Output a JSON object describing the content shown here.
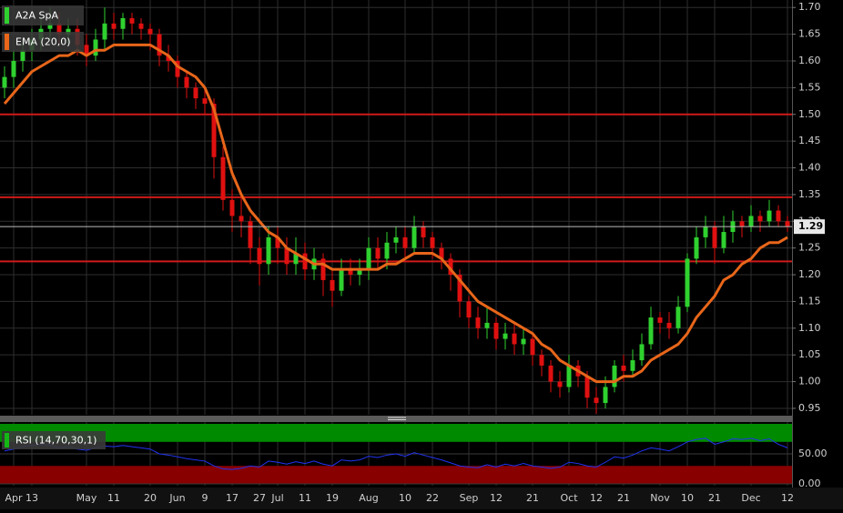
{
  "chart_data": [
    {
      "type": "candlestick",
      "categories": [
        null,
        "Apr",
        null,
        "13",
        null,
        null,
        null,
        null,
        null,
        "May",
        null,
        null,
        "11",
        null,
        null,
        null,
        "20",
        null,
        null,
        "Jun",
        null,
        null,
        "9",
        null,
        null,
        "17",
        null,
        null,
        "27",
        null,
        "Jul",
        null,
        null,
        "11",
        null,
        null,
        "19",
        null,
        null,
        null,
        "Aug",
        null,
        null,
        null,
        "10",
        null,
        null,
        "22",
        null,
        null,
        null,
        "Sep",
        null,
        null,
        "12",
        null,
        null,
        null,
        "21",
        null,
        null,
        null,
        "Oct",
        null,
        null,
        "12",
        null,
        null,
        "21",
        null,
        null,
        null,
        "Nov",
        null,
        null,
        "10",
        null,
        null,
        "21",
        null,
        null,
        null,
        "Dec",
        null,
        null,
        null,
        "12"
      ],
      "series": [
        {
          "name": "A2A SpA",
          "color": "#2fd12f",
          "down_color": "#e01010",
          "open": [
            1.55,
            1.57,
            1.6,
            1.62,
            1.64,
            1.66,
            1.67,
            1.65,
            1.66,
            1.63,
            1.61,
            1.64,
            1.67,
            1.66,
            1.68,
            1.67,
            1.66,
            1.65,
            1.61,
            1.6,
            1.57,
            1.55,
            1.53,
            1.52,
            1.42,
            1.34,
            1.31,
            1.3,
            1.25,
            1.22,
            1.27,
            1.25,
            1.22,
            1.24,
            1.21,
            1.23,
            1.19,
            1.17,
            1.21,
            1.2,
            1.21,
            1.25,
            1.23,
            1.26,
            1.27,
            1.25,
            1.29,
            1.27,
            1.25,
            1.23,
            1.2,
            1.15,
            1.12,
            1.1,
            1.11,
            1.08,
            1.09,
            1.07,
            1.08,
            1.05,
            1.03,
            1.0,
            0.99,
            1.03,
            1.01,
            0.97,
            0.96,
            0.99,
            1.03,
            1.02,
            1.04,
            1.07,
            1.12,
            1.11,
            1.1,
            1.14,
            1.23,
            1.27,
            1.29,
            1.25,
            1.28,
            1.3,
            1.29,
            1.31,
            1.3,
            1.32,
            1.3
          ],
          "high": [
            1.59,
            1.62,
            1.64,
            1.66,
            1.68,
            1.7,
            1.69,
            1.68,
            1.68,
            1.65,
            1.66,
            1.7,
            1.69,
            1.69,
            1.69,
            1.68,
            1.67,
            1.66,
            1.63,
            1.61,
            1.58,
            1.56,
            1.55,
            1.53,
            1.44,
            1.36,
            1.35,
            1.31,
            1.27,
            1.29,
            1.29,
            1.27,
            1.27,
            1.26,
            1.25,
            1.24,
            1.21,
            1.23,
            1.23,
            1.23,
            1.27,
            1.27,
            1.28,
            1.29,
            1.29,
            1.31,
            1.3,
            1.28,
            1.26,
            1.24,
            1.21,
            1.16,
            1.14,
            1.14,
            1.12,
            1.11,
            1.11,
            1.1,
            1.09,
            1.06,
            1.04,
            1.02,
            1.05,
            1.04,
            1.02,
            0.99,
            1.01,
            1.04,
            1.05,
            1.06,
            1.09,
            1.14,
            1.13,
            1.13,
            1.16,
            1.24,
            1.29,
            1.31,
            1.3,
            1.31,
            1.32,
            1.31,
            1.33,
            1.32,
            1.34,
            1.33,
            1.31
          ],
          "low": [
            1.53,
            1.55,
            1.58,
            1.6,
            1.62,
            1.64,
            1.63,
            1.63,
            1.61,
            1.59,
            1.6,
            1.62,
            1.64,
            1.64,
            1.65,
            1.64,
            1.62,
            1.59,
            1.58,
            1.55,
            1.53,
            1.51,
            1.5,
            1.38,
            1.32,
            1.28,
            1.27,
            1.22,
            1.18,
            1.2,
            1.22,
            1.2,
            1.2,
            1.19,
            1.19,
            1.16,
            1.14,
            1.16,
            1.18,
            1.18,
            1.19,
            1.21,
            1.21,
            1.24,
            1.23,
            1.24,
            1.25,
            1.23,
            1.21,
            1.17,
            1.12,
            1.1,
            1.08,
            1.08,
            1.06,
            1.06,
            1.05,
            1.05,
            1.03,
            1.01,
            0.98,
            0.97,
            0.98,
            0.99,
            0.95,
            0.94,
            0.95,
            0.98,
            1.0,
            1.01,
            1.03,
            1.06,
            1.09,
            1.08,
            1.09,
            1.13,
            1.22,
            1.25,
            1.22,
            1.24,
            1.26,
            1.27,
            1.28,
            1.28,
            1.29,
            1.29,
            1.28
          ],
          "close": [
            1.57,
            1.6,
            1.62,
            1.64,
            1.66,
            1.67,
            1.65,
            1.66,
            1.63,
            1.61,
            1.64,
            1.67,
            1.66,
            1.68,
            1.67,
            1.66,
            1.65,
            1.61,
            1.6,
            1.57,
            1.55,
            1.53,
            1.52,
            1.42,
            1.34,
            1.31,
            1.3,
            1.25,
            1.22,
            1.27,
            1.25,
            1.22,
            1.24,
            1.21,
            1.23,
            1.19,
            1.17,
            1.21,
            1.2,
            1.21,
            1.25,
            1.23,
            1.26,
            1.27,
            1.25,
            1.29,
            1.27,
            1.25,
            1.23,
            1.2,
            1.15,
            1.12,
            1.1,
            1.11,
            1.08,
            1.09,
            1.07,
            1.08,
            1.05,
            1.03,
            1.0,
            0.99,
            1.03,
            1.01,
            0.97,
            0.96,
            0.99,
            1.03,
            1.02,
            1.04,
            1.07,
            1.12,
            1.11,
            1.1,
            1.14,
            1.23,
            1.27,
            1.29,
            1.25,
            1.28,
            1.3,
            1.29,
            1.31,
            1.3,
            1.32,
            1.3,
            1.29
          ]
        },
        {
          "name": "EMA (20,0)",
          "type": "line",
          "color": "#e8661a",
          "values": [
            1.52,
            1.54,
            1.56,
            1.58,
            1.59,
            1.6,
            1.61,
            1.61,
            1.62,
            1.61,
            1.62,
            1.62,
            1.63,
            1.63,
            1.63,
            1.63,
            1.63,
            1.62,
            1.61,
            1.59,
            1.58,
            1.57,
            1.55,
            1.51,
            1.45,
            1.39,
            1.35,
            1.32,
            1.3,
            1.28,
            1.27,
            1.25,
            1.24,
            1.23,
            1.22,
            1.22,
            1.21,
            1.21,
            1.21,
            1.21,
            1.21,
            1.21,
            1.22,
            1.22,
            1.23,
            1.24,
            1.24,
            1.24,
            1.23,
            1.21,
            1.19,
            1.17,
            1.15,
            1.14,
            1.13,
            1.12,
            1.11,
            1.1,
            1.09,
            1.07,
            1.06,
            1.04,
            1.03,
            1.02,
            1.01,
            1.0,
            1.0,
            1.0,
            1.01,
            1.01,
            1.02,
            1.04,
            1.05,
            1.06,
            1.07,
            1.09,
            1.12,
            1.14,
            1.16,
            1.19,
            1.2,
            1.22,
            1.23,
            1.25,
            1.26,
            1.26,
            1.27
          ]
        }
      ],
      "hlines": [
        {
          "value": 1.5,
          "color": "#d01a1a"
        },
        {
          "value": 1.345,
          "color": "#d01a1a"
        },
        {
          "value": 1.225,
          "color": "#d01a1a"
        }
      ],
      "ylim": [
        0.938,
        1.714
      ],
      "yticks": [
        {
          "value": 0.95,
          "label": "0.95"
        },
        {
          "value": 1,
          "label": "1.00"
        },
        {
          "value": 1.05,
          "label": "1.05"
        },
        {
          "value": 1.1,
          "label": "1.10"
        },
        {
          "value": 1.15,
          "label": "1.15"
        },
        {
          "value": 1.2,
          "label": "1.20"
        },
        {
          "value": 1.25,
          "label": "1.25"
        },
        {
          "value": 1.3,
          "label": "1.30"
        },
        {
          "value": 1.35,
          "label": "1.35"
        },
        {
          "value": 1.4,
          "label": "1.40"
        },
        {
          "value": 1.45,
          "label": "1.45"
        },
        {
          "value": 1.5,
          "label": "1.50"
        },
        {
          "value": 1.55,
          "label": "1.55"
        },
        {
          "value": 1.6,
          "label": "1.60"
        },
        {
          "value": 1.65,
          "label": "1.65"
        },
        {
          "value": 1.7,
          "label": "1.70"
        }
      ],
      "last_label": "1.29",
      "grid": true
    },
    {
      "type": "line",
      "name": "RSI (14,70,30,1)",
      "color": "#2233ee",
      "legend_color": "#14b814",
      "values": [
        55,
        58,
        62,
        64,
        66,
        64,
        60,
        62,
        58,
        56,
        60,
        63,
        62,
        64,
        62,
        60,
        58,
        50,
        48,
        45,
        42,
        40,
        38,
        30,
        25,
        24,
        26,
        30,
        28,
        38,
        36,
        33,
        37,
        34,
        38,
        33,
        30,
        40,
        38,
        40,
        46,
        44,
        48,
        50,
        46,
        52,
        48,
        44,
        40,
        35,
        30,
        28,
        27,
        32,
        28,
        33,
        30,
        34,
        30,
        28,
        26,
        28,
        36,
        34,
        30,
        28,
        36,
        45,
        43,
        48,
        55,
        60,
        58,
        55,
        62,
        70,
        74,
        76,
        66,
        70,
        75,
        74,
        76,
        72,
        75,
        66,
        60
      ],
      "bands": [
        {
          "from": 70,
          "to": 100,
          "color": "#008a00"
        },
        {
          "from": 0,
          "to": 30,
          "color": "#880000"
        }
      ],
      "ylim": [
        -3,
        103
      ],
      "yticks": [
        {
          "value": 0,
          "label": "0.00"
        },
        {
          "value": 50,
          "label": "50.00"
        }
      ],
      "grid": true
    }
  ]
}
